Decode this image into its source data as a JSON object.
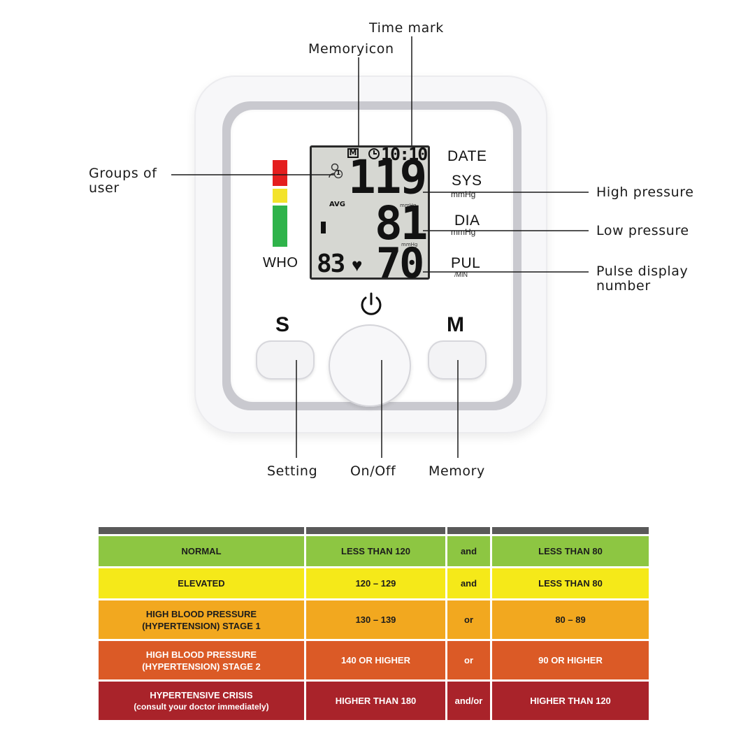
{
  "callouts": {
    "time_mark": "Time mark",
    "memory_icon": "Memoryicon",
    "groups_of_user": [
      "Groups of",
      "user"
    ],
    "high_pressure": "High pressure",
    "low_pressure": "Low pressure",
    "pulse_display": [
      "Pulse display",
      "number"
    ],
    "setting": "Setting",
    "on_off": "On/Off",
    "memory": "Memory"
  },
  "device": {
    "lcd": {
      "memory_indicator": "M",
      "time": "10:10",
      "user_group": "1",
      "avg_label": "AVG",
      "sys_value": "119",
      "dia_value": "81",
      "pulse_value": "70",
      "memory_count": "83",
      "unit_mmhg": "mmHg"
    },
    "labels": {
      "date": "DATE",
      "sys": "SYS",
      "sys_unit": "mmHg",
      "dia": "DIA",
      "dia_unit": "mmHg",
      "pul": "PUL",
      "pul_unit": "/MIN",
      "who": "WHO"
    },
    "buttons": {
      "setting": "S",
      "memory": "M"
    },
    "who_colors": [
      "#e41e1e",
      "#f3e32b",
      "#2fb34a"
    ]
  },
  "table": {
    "rows": [
      {
        "category": [
          "NORMAL"
        ],
        "systolic": "LESS THAN 120",
        "join": "and",
        "diastolic": "LESS THAN 80",
        "color": "#8dc642"
      },
      {
        "category": [
          "ELEVATED"
        ],
        "systolic": "120 – 129",
        "join": "and",
        "diastolic": "LESS THAN 80",
        "color": "#f5e919"
      },
      {
        "category": [
          "HIGH BLOOD PRESSURE",
          "(HYPERTENSION) STAGE 1"
        ],
        "systolic": "130 – 139",
        "join": "or",
        "diastolic": "80 – 89",
        "color": "#f2a81f"
      },
      {
        "category": [
          "HIGH BLOOD PRESSURE",
          "(HYPERTENSION) STAGE 2"
        ],
        "systolic": "140 OR HIGHER",
        "join": "or",
        "diastolic": "90 OR HIGHER",
        "color": "#db5a26"
      },
      {
        "category": [
          "HYPERTENSIVE CRISIS",
          "(consult your doctor immediately)"
        ],
        "systolic": "HIGHER THAN 180",
        "join": "and/or",
        "diastolic": "HIGHER THAN 120",
        "color": "#a9232a"
      }
    ]
  }
}
